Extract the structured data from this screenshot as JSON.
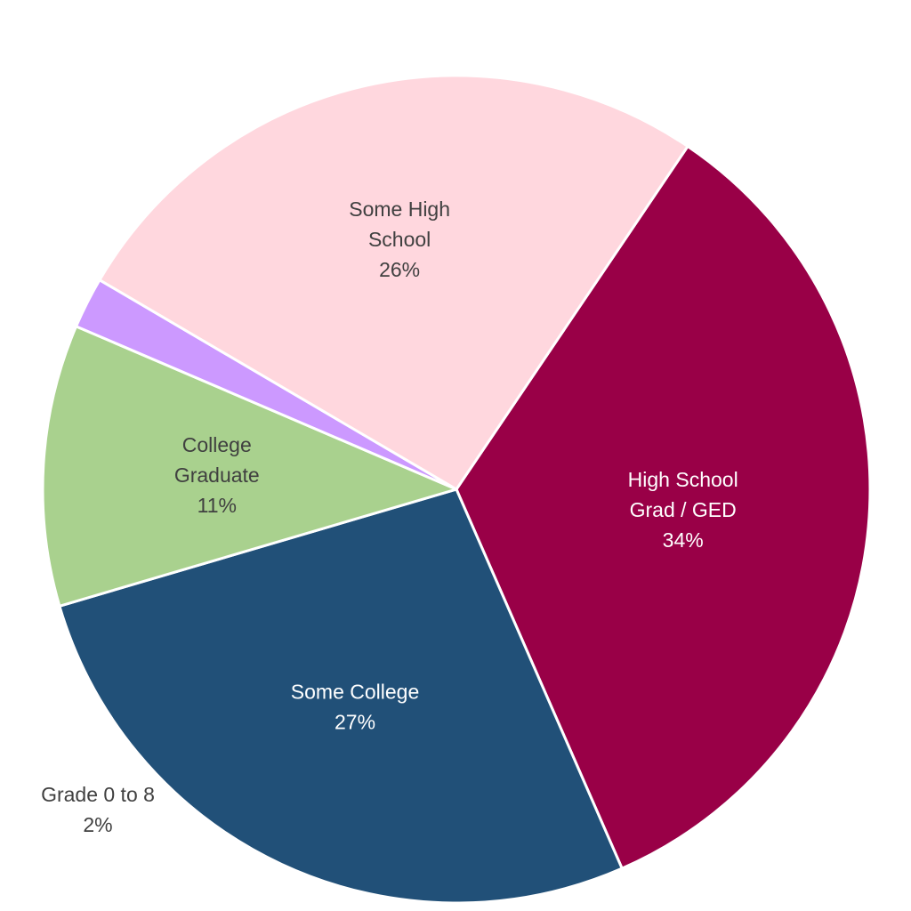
{
  "chart_data": {
    "type": "pie",
    "title": "",
    "slices": [
      {
        "label_lines": [
          "High School",
          "Grad / GED"
        ],
        "pct_label": "34%",
        "value": 34,
        "color": "#990047",
        "label_color": "#ffffff"
      },
      {
        "label_lines": [
          "Some College"
        ],
        "pct_label": "27%",
        "value": 27,
        "color": "#215078",
        "label_color": "#ffffff"
      },
      {
        "label_lines": [
          "College",
          "Graduate"
        ],
        "pct_label": "11%",
        "value": 11,
        "color": "#a9d18e",
        "label_color": "#404040"
      },
      {
        "label_lines": [
          "Grade 0 to 8"
        ],
        "pct_label": "2%",
        "value": 2,
        "color": "#cc99ff",
        "label_color": "#404040"
      },
      {
        "label_lines": [
          "Some High",
          "School"
        ],
        "pct_label": "26%",
        "value": 26,
        "color": "#ffd7de",
        "label_color": "#404040"
      }
    ],
    "start_angle_deg": -56,
    "direction": "clockwise",
    "legend": "none"
  }
}
